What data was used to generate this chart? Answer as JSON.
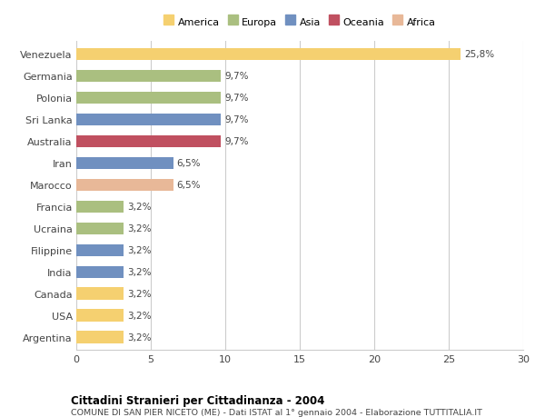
{
  "countries": [
    "Venezuela",
    "Germania",
    "Polonia",
    "Sri Lanka",
    "Australia",
    "Iran",
    "Marocco",
    "Francia",
    "Ucraina",
    "Filippine",
    "India",
    "Canada",
    "USA",
    "Argentina"
  ],
  "values": [
    25.8,
    9.7,
    9.7,
    9.7,
    9.7,
    6.5,
    6.5,
    3.2,
    3.2,
    3.2,
    3.2,
    3.2,
    3.2,
    3.2
  ],
  "colors": [
    "#F5D070",
    "#AABF80",
    "#AABF80",
    "#7090C0",
    "#C05060",
    "#7090C0",
    "#E8B898",
    "#AABF80",
    "#AABF80",
    "#7090C0",
    "#7090C0",
    "#F5D070",
    "#F5D070",
    "#F5D070"
  ],
  "labels": [
    "25,8%",
    "9,7%",
    "9,7%",
    "9,7%",
    "9,7%",
    "6,5%",
    "6,5%",
    "3,2%",
    "3,2%",
    "3,2%",
    "3,2%",
    "3,2%",
    "3,2%",
    "3,2%"
  ],
  "legend": [
    {
      "label": "America",
      "color": "#F5D070"
    },
    {
      "label": "Europa",
      "color": "#AABF80"
    },
    {
      "label": "Asia",
      "color": "#7090C0"
    },
    {
      "label": "Oceania",
      "color": "#C05060"
    },
    {
      "label": "Africa",
      "color": "#E8B898"
    }
  ],
  "xlim": [
    0,
    30
  ],
  "xticks": [
    0,
    5,
    10,
    15,
    20,
    25,
    30
  ],
  "title1": "Cittadini Stranieri per Cittadinanza - 2004",
  "title2": "COMUNE DI SAN PIER NICETO (ME) - Dati ISTAT al 1° gennaio 2004 - Elaborazione TUTTITALIA.IT",
  "bg_color": "#ffffff",
  "grid_color": "#cccccc",
  "bar_height": 0.55
}
